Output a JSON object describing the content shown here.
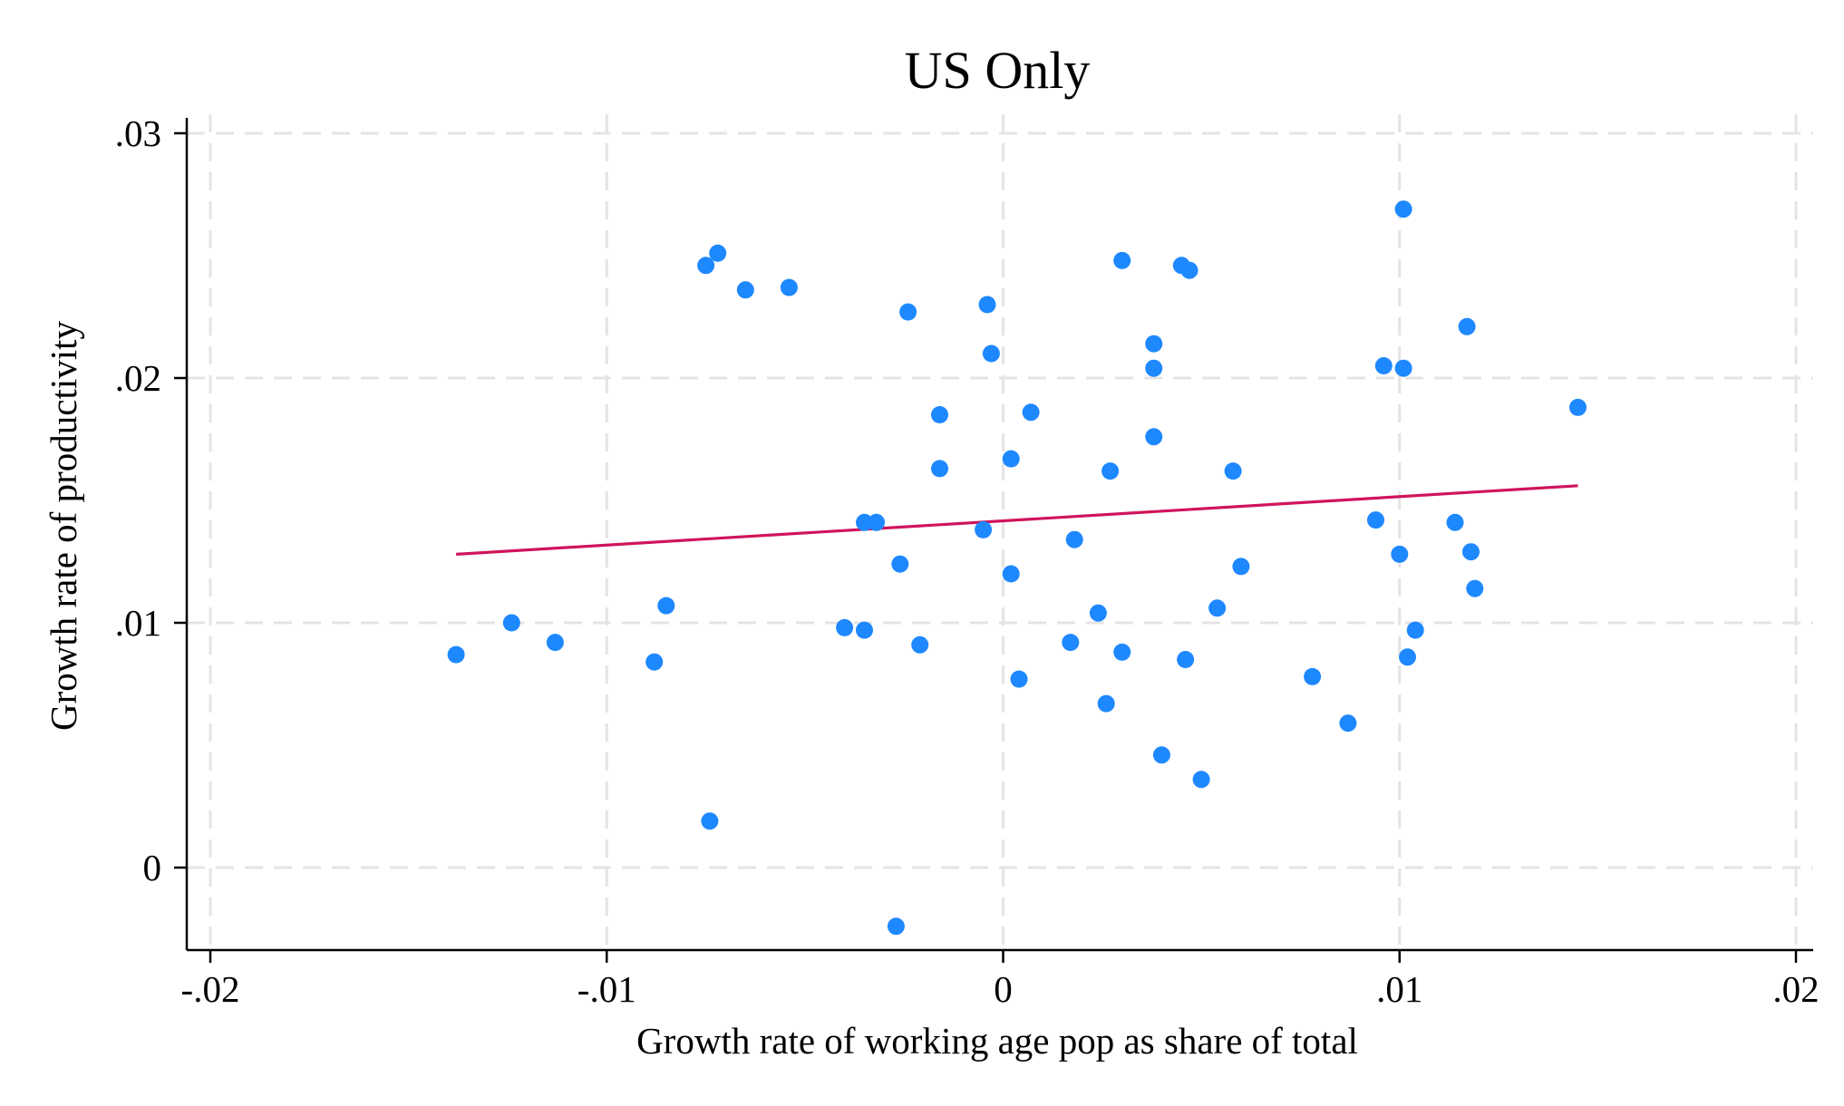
{
  "chart_data": {
    "type": "scatter",
    "title": "US Only",
    "xlabel": "Growth rate of working age pop as share of total",
    "ylabel": "Growth rate of productivity",
    "xlim": [
      -0.02,
      0.02
    ],
    "ylim": [
      -0.0033,
      0.0304
    ],
    "x_ticks": [
      -0.02,
      -0.01,
      0,
      0.01,
      0.02
    ],
    "x_tick_labels": [
      "-.02",
      "-.01",
      "0",
      ".01",
      ".02"
    ],
    "y_ticks": [
      0,
      0.01,
      0.02,
      0.03
    ],
    "y_tick_labels": [
      "0",
      ".01",
      ".02",
      ".03"
    ],
    "grid": true,
    "colors": {
      "points": "#1e88ff",
      "fit_line": "#d0145c",
      "grid": "#e4e4e4",
      "axis": "#000000"
    },
    "series": [
      {
        "kind": "scatter",
        "points": [
          {
            "x": -0.0138,
            "y": 0.0087
          },
          {
            "x": -0.0124,
            "y": 0.01
          },
          {
            "x": -0.0113,
            "y": 0.0092
          },
          {
            "x": -0.0088,
            "y": 0.0084
          },
          {
            "x": -0.0085,
            "y": 0.0107
          },
          {
            "x": -0.0075,
            "y": 0.0246
          },
          {
            "x": -0.0074,
            "y": 0.0019
          },
          {
            "x": -0.0072,
            "y": 0.0251
          },
          {
            "x": -0.0065,
            "y": 0.0236
          },
          {
            "x": -0.0054,
            "y": 0.0237
          },
          {
            "x": -0.004,
            "y": 0.0098
          },
          {
            "x": -0.0035,
            "y": 0.0141
          },
          {
            "x": -0.0035,
            "y": 0.0097
          },
          {
            "x": -0.0032,
            "y": 0.0141
          },
          {
            "x": -0.0027,
            "y": -0.0024
          },
          {
            "x": -0.0026,
            "y": 0.0124
          },
          {
            "x": -0.0024,
            "y": 0.0227
          },
          {
            "x": -0.0021,
            "y": 0.0091
          },
          {
            "x": -0.0016,
            "y": 0.0163
          },
          {
            "x": -0.0016,
            "y": 0.0185
          },
          {
            "x": -0.0005,
            "y": 0.0138
          },
          {
            "x": -0.0004,
            "y": 0.023
          },
          {
            "x": -0.0003,
            "y": 0.021
          },
          {
            "x": 0.0002,
            "y": 0.012
          },
          {
            "x": 0.0002,
            "y": 0.0167
          },
          {
            "x": 0.0004,
            "y": 0.0077
          },
          {
            "x": 0.0007,
            "y": 0.0186
          },
          {
            "x": 0.0017,
            "y": 0.0092
          },
          {
            "x": 0.0018,
            "y": 0.0134
          },
          {
            "x": 0.0024,
            "y": 0.0104
          },
          {
            "x": 0.0026,
            "y": 0.0067
          },
          {
            "x": 0.0027,
            "y": 0.0162
          },
          {
            "x": 0.003,
            "y": 0.0248
          },
          {
            "x": 0.003,
            "y": 0.0088
          },
          {
            "x": 0.0038,
            "y": 0.0176
          },
          {
            "x": 0.0038,
            "y": 0.0214
          },
          {
            "x": 0.0038,
            "y": 0.0204
          },
          {
            "x": 0.004,
            "y": 0.0046
          },
          {
            "x": 0.0045,
            "y": 0.0246
          },
          {
            "x": 0.0046,
            "y": 0.0085
          },
          {
            "x": 0.0047,
            "y": 0.0244
          },
          {
            "x": 0.005,
            "y": 0.0036
          },
          {
            "x": 0.0054,
            "y": 0.0106
          },
          {
            "x": 0.0058,
            "y": 0.0162
          },
          {
            "x": 0.006,
            "y": 0.0123
          },
          {
            "x": 0.0078,
            "y": 0.0078
          },
          {
            "x": 0.0087,
            "y": 0.0059
          },
          {
            "x": 0.0094,
            "y": 0.0142
          },
          {
            "x": 0.0096,
            "y": 0.0205
          },
          {
            "x": 0.01,
            "y": 0.0128
          },
          {
            "x": 0.0101,
            "y": 0.0269
          },
          {
            "x": 0.0101,
            "y": 0.0204
          },
          {
            "x": 0.0102,
            "y": 0.0086
          },
          {
            "x": 0.0104,
            "y": 0.0097
          },
          {
            "x": 0.0114,
            "y": 0.0141
          },
          {
            "x": 0.0117,
            "y": 0.0221
          },
          {
            "x": 0.0118,
            "y": 0.0129
          },
          {
            "x": 0.0119,
            "y": 0.0114
          },
          {
            "x": 0.0145,
            "y": 0.0188
          }
        ]
      },
      {
        "kind": "line",
        "points": [
          {
            "x": -0.0138,
            "y": 0.0128
          },
          {
            "x": 0.0145,
            "y": 0.0156
          }
        ]
      }
    ]
  }
}
